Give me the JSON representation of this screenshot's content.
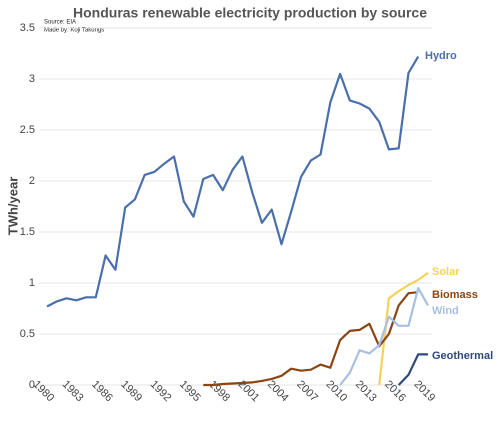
{
  "chart_data": {
    "type": "line",
    "title": "Honduras renewable electricity production by source",
    "subtitle": [
      "Source: EIA",
      "Made by: Koji Takungs"
    ],
    "ylabel": "TWh/year",
    "x": [
      1980,
      1981,
      1982,
      1983,
      1984,
      1985,
      1986,
      1987,
      1988,
      1989,
      1990,
      1991,
      1992,
      1993,
      1994,
      1995,
      1996,
      1997,
      1998,
      1999,
      2000,
      2001,
      2002,
      2003,
      2004,
      2005,
      2006,
      2007,
      2008,
      2009,
      2010,
      2011,
      2012,
      2013,
      2014,
      2015,
      2016,
      2017,
      2018,
      2019
    ],
    "series": [
      {
        "name": "Hydro",
        "color": "#4a6faa",
        "values": [
          0.77,
          0.82,
          0.85,
          0.83,
          0.86,
          0.86,
          1.27,
          1.13,
          1.74,
          1.82,
          2.06,
          2.09,
          2.17,
          2.24,
          1.8,
          1.65,
          2.02,
          2.06,
          1.91,
          2.11,
          2.24,
          1.89,
          1.59,
          1.72,
          1.38,
          1.7,
          2.04,
          2.2,
          2.26,
          2.77,
          3.05,
          2.79,
          2.76,
          2.71,
          2.58,
          2.31,
          2.32,
          3.06,
          3.22,
          null
        ]
      },
      {
        "name": "Solar",
        "color": "#f5d25a",
        "values": [
          null,
          null,
          null,
          null,
          null,
          null,
          null,
          null,
          null,
          null,
          null,
          null,
          null,
          null,
          null,
          null,
          null,
          null,
          null,
          null,
          null,
          null,
          null,
          null,
          null,
          null,
          null,
          null,
          null,
          null,
          null,
          null,
          null,
          null,
          0,
          0.85,
          0.92,
          0.98,
          1.03,
          1.1
        ]
      },
      {
        "name": "Biomass",
        "color": "#8b4513",
        "values": [
          null,
          null,
          null,
          null,
          null,
          null,
          null,
          null,
          null,
          null,
          null,
          null,
          null,
          null,
          null,
          null,
          0,
          0,
          0.01,
          0.015,
          0.02,
          0.025,
          0.04,
          0.06,
          0.09,
          0.16,
          0.14,
          0.15,
          0.2,
          0.17,
          0.44,
          0.53,
          0.54,
          0.6,
          0.38,
          0.5,
          0.78,
          0.9,
          0.91,
          null
        ]
      },
      {
        "name": "Wind",
        "color": "#a8c0e0",
        "values": [
          null,
          null,
          null,
          null,
          null,
          null,
          null,
          null,
          null,
          null,
          null,
          null,
          null,
          null,
          null,
          null,
          null,
          null,
          null,
          null,
          null,
          null,
          null,
          null,
          null,
          null,
          null,
          null,
          null,
          null,
          0,
          0.12,
          0.34,
          0.31,
          0.39,
          0.67,
          0.58,
          0.58,
          0.95,
          0.78
        ]
      },
      {
        "name": "Geothermal",
        "color": "#2e4a7a",
        "values": [
          null,
          null,
          null,
          null,
          null,
          null,
          null,
          null,
          null,
          null,
          null,
          null,
          null,
          null,
          null,
          null,
          null,
          null,
          null,
          null,
          null,
          null,
          null,
          null,
          null,
          null,
          null,
          null,
          null,
          null,
          null,
          null,
          null,
          null,
          null,
          null,
          0,
          0.1,
          0.3,
          0.3
        ]
      }
    ],
    "xlim": [
      1980,
      2019
    ],
    "xticks": [
      1980,
      1983,
      1986,
      1989,
      1992,
      1995,
      1998,
      2001,
      2004,
      2007,
      2010,
      2013,
      2016,
      2019
    ],
    "ylim": [
      0,
      3.5
    ],
    "yticks": [
      0,
      0.5,
      1,
      1.5,
      2,
      2.5,
      3,
      3.5
    ],
    "grid": true
  }
}
